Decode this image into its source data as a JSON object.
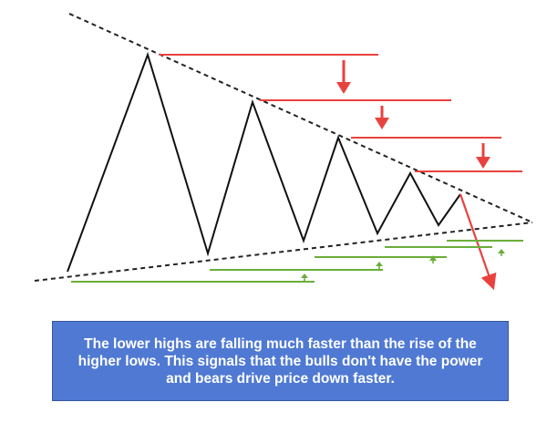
{
  "caption": {
    "text": "The lower highs are falling much faster than the rise of the higher lows. This signals that the bulls don't have the power and bears drive price down faster."
  },
  "colors": {
    "background": "#ffffff",
    "price_line": "#111111",
    "trendline": "#222222",
    "lower_high_marker": "#e8423f",
    "higher_low_marker": "#6aae3a",
    "breakdown_arrow": "#e8423f",
    "caption_background": "#4f79d3",
    "caption_text": "#ffffff"
  },
  "diagram": {
    "pattern": "descending-apex symmetrical triangle",
    "lower_high_count": 4,
    "higher_low_count": 4,
    "down_arrows": 3,
    "up_arrows": 4,
    "breakdown_direction": "down"
  }
}
